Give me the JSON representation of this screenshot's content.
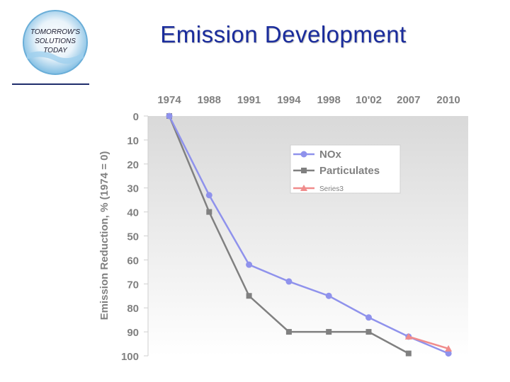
{
  "slide": {
    "title": "Emission Development",
    "logo": {
      "lines": [
        "TOMORROW'S",
        "SOLUTIONS",
        "TODAY"
      ],
      "colors": {
        "text": "#1a1a2e",
        "ring_outer": "#8ec8e8",
        "ring_inner": "#e9f3fa"
      }
    }
  },
  "chart_data": {
    "type": "line",
    "title": "",
    "xlabel": "",
    "ylabel": "Emission Reduction, % (1974 = 0)",
    "categories": [
      "1974",
      "1988",
      "1991",
      "1994",
      "1998",
      "10'02",
      "2007",
      "2010"
    ],
    "x_axis_position": "top",
    "y_inverted": true,
    "ylim": [
      0,
      100
    ],
    "yticks": [
      0,
      10,
      20,
      30,
      40,
      50,
      60,
      70,
      80,
      90,
      100
    ],
    "grid": false,
    "legend": {
      "placement": "top-right"
    },
    "series": [
      {
        "name": "NOx",
        "color": "#8f92ec",
        "marker": "circle",
        "values": [
          0,
          33,
          62,
          69,
          75,
          84,
          92,
          99
        ]
      },
      {
        "name": "Particulates",
        "color": "#808080",
        "marker": "square",
        "values": [
          0,
          40,
          75,
          90,
          90,
          90,
          99,
          null
        ]
      },
      {
        "name": "Series3",
        "color": "#f08c8c",
        "marker": "triangle",
        "values": [
          null,
          null,
          null,
          null,
          null,
          null,
          92,
          97
        ]
      }
    ]
  }
}
